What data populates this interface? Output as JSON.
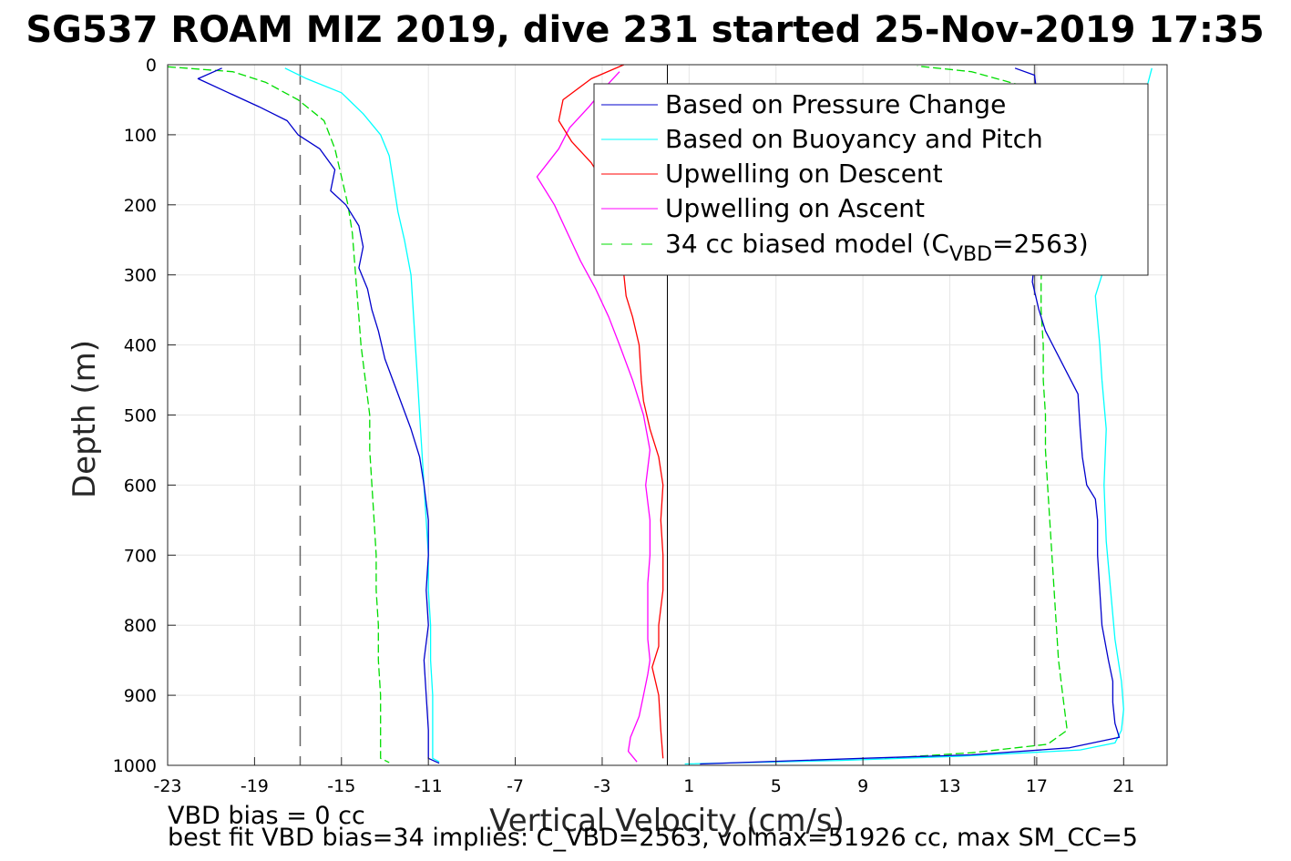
{
  "chart_data": {
    "type": "line",
    "title": "SG537 ROAM MIZ 2019, dive 231 started 25-Nov-2019 17:35",
    "xlabel": "Vertical Velocity (cm/s)",
    "ylabel": "Depth (m)",
    "xlim": [
      -23,
      23
    ],
    "ylim": [
      0,
      1000
    ],
    "y_reversed": true,
    "grid": true,
    "xticks": [
      -23,
      -19,
      -15,
      -11,
      -7,
      -3,
      1,
      5,
      9,
      13,
      17,
      21
    ],
    "yticks": [
      0,
      100,
      200,
      300,
      400,
      500,
      600,
      700,
      800,
      900,
      1000
    ],
    "legend_location": "top-right",
    "legend": {
      "pressure": "Based on Pressure Change",
      "buoyancy": "Based on Buoyancy and Pitch",
      "up_desc": "Upwelling on Descent",
      "up_asc": "Upwelling on Ascent",
      "model_prefix": "34 cc biased model (C",
      "model_sub": "VBD",
      "model_suffix": "=2563)"
    },
    "colors": {
      "pressure": "#0000cc",
      "buoyancy": "#00ffff",
      "up_desc": "#ff0000",
      "up_asc": "#ff00ff",
      "model": "#00dd00",
      "reference": "#666666",
      "zero": "#000000"
    },
    "reference_lines_x": [
      -16.9,
      16.9
    ],
    "zero_line_x": 0,
    "series": [
      {
        "key": "pressure",
        "segment": "descent",
        "points": [
          [
            -20.5,
            5
          ],
          [
            -21.6,
            20
          ],
          [
            -20.2,
            40
          ],
          [
            -18.8,
            60
          ],
          [
            -17.5,
            80
          ],
          [
            -17.0,
            100
          ],
          [
            -16.0,
            120
          ],
          [
            -15.3,
            150
          ],
          [
            -15.5,
            180
          ],
          [
            -14.8,
            200
          ],
          [
            -14.2,
            230
          ],
          [
            -14.0,
            260
          ],
          [
            -14.2,
            290
          ],
          [
            -13.8,
            320
          ],
          [
            -13.6,
            350
          ],
          [
            -13.3,
            380
          ],
          [
            -13.0,
            420
          ],
          [
            -12.4,
            470
          ],
          [
            -11.8,
            520
          ],
          [
            -11.4,
            560
          ],
          [
            -11.2,
            600
          ],
          [
            -11.0,
            650
          ],
          [
            -11.0,
            700
          ],
          [
            -11.1,
            750
          ],
          [
            -11.0,
            800
          ],
          [
            -11.2,
            850
          ],
          [
            -11.1,
            900
          ],
          [
            -11.0,
            950
          ],
          [
            -11.0,
            990
          ],
          [
            -10.5,
            997
          ]
        ]
      },
      {
        "key": "pressure",
        "segment": "ascent",
        "points": [
          [
            1.5,
            998
          ],
          [
            9.0,
            990
          ],
          [
            14.0,
            985
          ],
          [
            18.5,
            975
          ],
          [
            20.8,
            960
          ],
          [
            20.6,
            940
          ],
          [
            20.5,
            910
          ],
          [
            20.5,
            880
          ],
          [
            20.3,
            850
          ],
          [
            20.0,
            800
          ],
          [
            19.9,
            750
          ],
          [
            19.8,
            700
          ],
          [
            19.8,
            650
          ],
          [
            19.7,
            620
          ],
          [
            19.3,
            600
          ],
          [
            19.1,
            560
          ],
          [
            19.0,
            520
          ],
          [
            18.9,
            470
          ],
          [
            18.4,
            440
          ],
          [
            17.9,
            410
          ],
          [
            17.4,
            380
          ],
          [
            17.1,
            350
          ],
          [
            16.8,
            310
          ],
          [
            16.9,
            280
          ],
          [
            17.0,
            40
          ],
          [
            16.9,
            15
          ],
          [
            16.0,
            5
          ]
        ]
      },
      {
        "key": "buoyancy",
        "segment": "descent",
        "points": [
          [
            -17.6,
            5
          ],
          [
            -16.6,
            20
          ],
          [
            -15.0,
            40
          ],
          [
            -14.0,
            70
          ],
          [
            -13.2,
            100
          ],
          [
            -12.8,
            130
          ],
          [
            -12.6,
            170
          ],
          [
            -12.4,
            210
          ],
          [
            -12.1,
            250
          ],
          [
            -11.8,
            300
          ],
          [
            -11.7,
            350
          ],
          [
            -11.6,
            400
          ],
          [
            -11.5,
            450
          ],
          [
            -11.4,
            500
          ],
          [
            -11.3,
            550
          ],
          [
            -11.2,
            600
          ],
          [
            -11.1,
            650
          ],
          [
            -11.0,
            700
          ],
          [
            -11.0,
            750
          ],
          [
            -10.9,
            800
          ],
          [
            -10.9,
            850
          ],
          [
            -10.8,
            900
          ],
          [
            -10.8,
            950
          ],
          [
            -10.8,
            990
          ],
          [
            -10.5,
            995
          ]
        ]
      },
      {
        "key": "buoyancy",
        "segment": "ascent",
        "points": [
          [
            0.8,
            998
          ],
          [
            8.0,
            993
          ],
          [
            13.5,
            987
          ],
          [
            19.0,
            978
          ],
          [
            20.6,
            968
          ],
          [
            20.9,
            950
          ],
          [
            21.0,
            920
          ],
          [
            20.9,
            880
          ],
          [
            20.6,
            820
          ],
          [
            20.4,
            750
          ],
          [
            20.2,
            680
          ],
          [
            20.1,
            600
          ],
          [
            20.2,
            520
          ],
          [
            20.0,
            450
          ],
          [
            19.9,
            400
          ],
          [
            19.7,
            330
          ],
          [
            20.0,
            300
          ],
          [
            20.5,
            270
          ],
          [
            22.0,
            40
          ],
          [
            22.3,
            5
          ]
        ]
      },
      {
        "key": "up_desc",
        "segment": "descent",
        "points": [
          [
            -2.0,
            0
          ],
          [
            -3.5,
            20
          ],
          [
            -4.8,
            50
          ],
          [
            -5.0,
            80
          ],
          [
            -4.4,
            110
          ],
          [
            -3.5,
            140
          ],
          [
            -2.9,
            170
          ],
          [
            -2.6,
            200
          ],
          [
            -2.4,
            230
          ],
          [
            -2.3,
            260
          ],
          [
            -2.0,
            300
          ],
          [
            -1.9,
            330
          ],
          [
            -1.6,
            360
          ],
          [
            -1.3,
            400
          ],
          [
            -1.2,
            450
          ],
          [
            -1.1,
            480
          ],
          [
            -0.8,
            520
          ],
          [
            -0.4,
            560
          ],
          [
            -0.2,
            600
          ],
          [
            -0.3,
            650
          ],
          [
            -0.2,
            700
          ],
          [
            -0.2,
            750
          ],
          [
            -0.4,
            800
          ],
          [
            -0.4,
            830
          ],
          [
            -0.7,
            860
          ],
          [
            -0.4,
            900
          ],
          [
            -0.3,
            950
          ],
          [
            -0.2,
            990
          ]
        ]
      },
      {
        "key": "up_asc",
        "segment": "ascent",
        "points": [
          [
            -1.4,
            995
          ],
          [
            -1.8,
            980
          ],
          [
            -1.7,
            960
          ],
          [
            -1.3,
            930
          ],
          [
            -1.1,
            900
          ],
          [
            -0.9,
            870
          ],
          [
            -0.8,
            850
          ],
          [
            -0.9,
            820
          ],
          [
            -0.9,
            780
          ],
          [
            -0.9,
            740
          ],
          [
            -0.8,
            700
          ],
          [
            -0.8,
            650
          ],
          [
            -1.0,
            600
          ],
          [
            -0.8,
            550
          ],
          [
            -1.1,
            500
          ],
          [
            -1.6,
            450
          ],
          [
            -2.2,
            400
          ],
          [
            -2.7,
            360
          ],
          [
            -3.3,
            320
          ],
          [
            -4.0,
            280
          ],
          [
            -4.6,
            240
          ],
          [
            -5.2,
            200
          ],
          [
            -6.0,
            160
          ],
          [
            -5.0,
            120
          ],
          [
            -4.5,
            90
          ],
          [
            -3.6,
            60
          ],
          [
            -2.8,
            30
          ],
          [
            -2.2,
            10
          ]
        ]
      },
      {
        "key": "model",
        "segment": "descent",
        "points": [
          [
            -23.0,
            3
          ],
          [
            -20.0,
            10
          ],
          [
            -18.5,
            25
          ],
          [
            -17.0,
            50
          ],
          [
            -15.8,
            80
          ],
          [
            -15.3,
            120
          ],
          [
            -15.0,
            160
          ],
          [
            -14.7,
            200
          ],
          [
            -14.5,
            240
          ],
          [
            -14.4,
            280
          ],
          [
            -14.3,
            320
          ],
          [
            -14.2,
            360
          ],
          [
            -14.1,
            400
          ],
          [
            -13.9,
            450
          ],
          [
            -13.7,
            500
          ],
          [
            -13.7,
            550
          ],
          [
            -13.6,
            600
          ],
          [
            -13.5,
            650
          ],
          [
            -13.4,
            700
          ],
          [
            -13.4,
            750
          ],
          [
            -13.3,
            800
          ],
          [
            -13.3,
            850
          ],
          [
            -13.2,
            900
          ],
          [
            -13.2,
            950
          ],
          [
            -13.2,
            990
          ],
          [
            -12.8,
            996
          ]
        ]
      },
      {
        "key": "model",
        "segment": "ascent",
        "points": [
          [
            10.0,
            990
          ],
          [
            14.0,
            982
          ],
          [
            17.5,
            970
          ],
          [
            18.4,
            950
          ],
          [
            18.2,
            900
          ],
          [
            18.0,
            850
          ],
          [
            17.9,
            800
          ],
          [
            17.8,
            750
          ],
          [
            17.7,
            700
          ],
          [
            17.6,
            650
          ],
          [
            17.5,
            600
          ],
          [
            17.4,
            550
          ],
          [
            17.4,
            500
          ],
          [
            17.3,
            450
          ],
          [
            17.3,
            400
          ],
          [
            17.2,
            350
          ],
          [
            17.2,
            310
          ],
          [
            17.5,
            40
          ],
          [
            14.0,
            10
          ],
          [
            11.5,
            2
          ]
        ]
      }
    ]
  },
  "footer": {
    "line1": "VBD bias = 0 cc",
    "line2": "best fit VBD bias=34 implies: C_VBD=2563, volmax=51926 cc, max SM_CC=5"
  }
}
